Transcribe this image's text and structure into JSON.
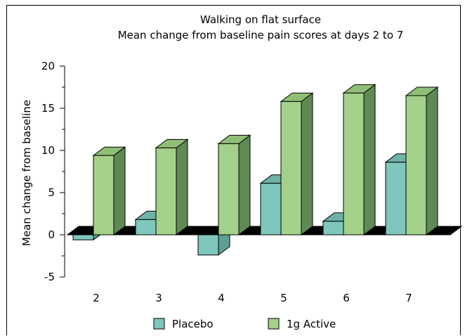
{
  "chart_data": {
    "type": "bar",
    "title": "Walking on flat surface",
    "subtitle": "Mean change from baseline pain scores at days 2 to 7",
    "xlabel": "",
    "ylabel": "Mean change from baseline",
    "categories": [
      "2",
      "3",
      "4",
      "5",
      "6",
      "7"
    ],
    "series": [
      {
        "name": "Placebo",
        "values": [
          -0.6,
          1.8,
          -2.4,
          6.1,
          1.6,
          8.6
        ],
        "color": "#7fc6bc",
        "side_color": "#5e9e95",
        "top_color": "#6fb2a8"
      },
      {
        "name": "1g Active",
        "values": [
          9.4,
          10.3,
          10.8,
          15.8,
          16.8,
          16.5
        ],
        "color": "#a3d18a",
        "side_color": "#5f8a55",
        "top_color": "#8fbf76"
      }
    ],
    "ylim": [
      -5,
      20
    ],
    "yticks": [
      "-5",
      "0",
      "5",
      "10",
      "15",
      "20"
    ],
    "three_d": true,
    "grid": false,
    "legend_position": "bottom"
  }
}
